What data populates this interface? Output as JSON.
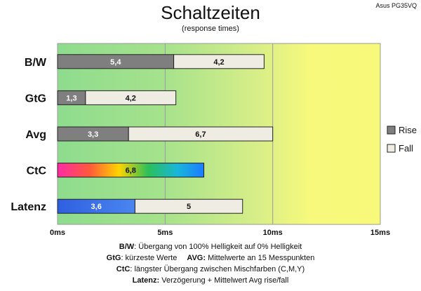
{
  "badge": "Asus PG35VQ",
  "chart_data": {
    "type": "bar",
    "orientation": "horizontal",
    "stacked": true,
    "title": "Schaltzeiten",
    "subtitle": "(response times)",
    "categories": [
      "B/W",
      "GtG",
      "Avg",
      "CtC",
      "Latenz"
    ],
    "series": [
      {
        "name": "Rise",
        "values": [
          5.4,
          1.3,
          3.3,
          null,
          null
        ]
      },
      {
        "name": "Fall",
        "values": [
          4.2,
          4.2,
          6.7,
          null,
          5
        ]
      }
    ],
    "special_bars": [
      {
        "category": "CtC",
        "value": 6.8,
        "fill": "rainbow"
      },
      {
        "category": "Latenz",
        "value": 3.6,
        "fill": "blue"
      }
    ],
    "value_labels": [
      [
        "5,4",
        "4,2"
      ],
      [
        "1,3",
        "4,2"
      ],
      [
        "3,3",
        "6,7"
      ],
      [
        "6,8"
      ],
      [
        "3,6",
        "5"
      ]
    ],
    "x_ticks": [
      "0ms",
      "5ms",
      "10ms",
      "15ms"
    ],
    "xlim": [
      0,
      15
    ],
    "background_bands": [
      {
        "from": 0,
        "to": 5,
        "color": "#8fdc8f"
      },
      {
        "from": 5,
        "to": 10,
        "color": "#c6ea8a"
      },
      {
        "from": 10,
        "to": 15,
        "color": "#f6f97c"
      }
    ],
    "legend": {
      "position": "right",
      "items": [
        "Rise",
        "Fall"
      ]
    },
    "colors": {
      "rise": "#7f7f7f",
      "fall": "#efece3",
      "latency_blue": "#3b6fe0"
    }
  },
  "notes": {
    "line1_bold": "B/W",
    "line1_text": ":  Übergang von 100% Helligkeit auf 0% Helligkeit",
    "line2a_bold": "GtG",
    "line2a_text": ": kürzeste  Werte",
    "line2b_bold": "AVG:",
    "line2b_text": " Mittelwerte  an 15 Messpunkten",
    "line3_bold": "CtC",
    "line3_text": ": längster Übergang  zwischen Mischfarben (C,M,Y)",
    "line4_bold": "Latenz:",
    "line4_text": " Verzögerung  + Mittelwert  Avg rise/fall"
  }
}
